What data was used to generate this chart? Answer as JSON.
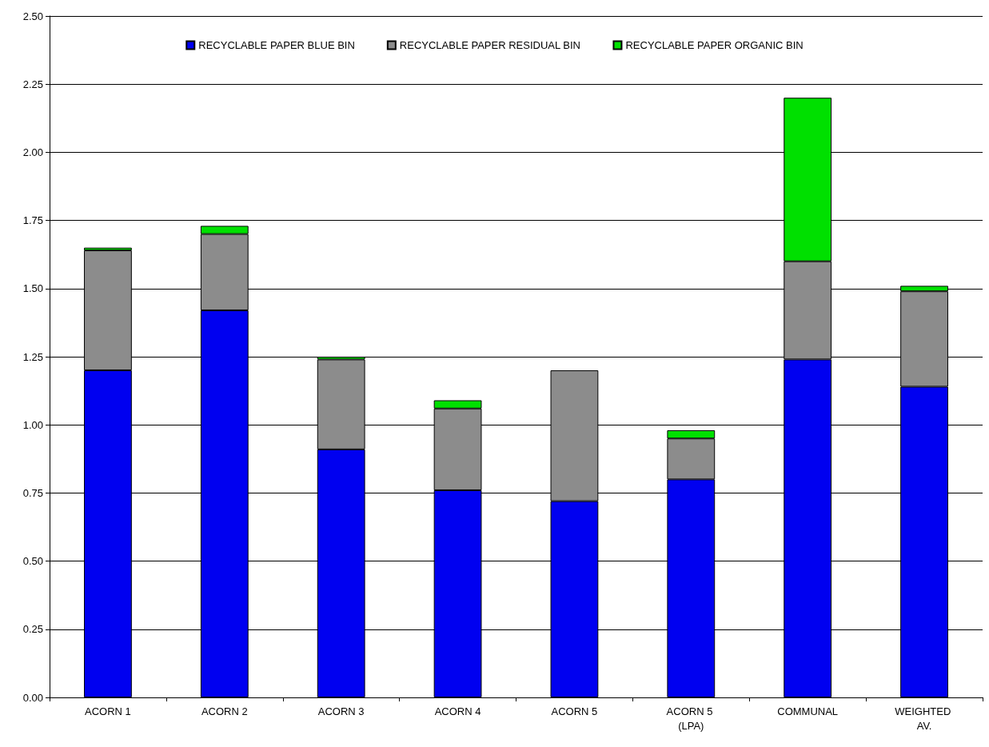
{
  "chart_data": {
    "type": "bar",
    "stacked": true,
    "categories": [
      "ACORN 1",
      "ACORN 2",
      "ACORN 3",
      "ACORN 4",
      "ACORN 5",
      "ACORN 5 (LPA)",
      "COMMUNAL",
      "WEIGHTED AV."
    ],
    "series": [
      {
        "name": "RECYCLABLE PAPER BLUE BIN",
        "color": "#0000f0",
        "values": [
          1.2,
          1.42,
          0.91,
          0.76,
          0.72,
          0.8,
          1.24,
          1.14
        ]
      },
      {
        "name": "RECYCLABLE PAPER RESIDUAL BIN",
        "color": "#8c8c8c",
        "values": [
          0.44,
          0.28,
          0.33,
          0.3,
          0.48,
          0.15,
          0.36,
          0.35
        ]
      },
      {
        "name": "RECYCLABLE PAPER ORGANIC BIN",
        "color": "#00e000",
        "values": [
          0.01,
          0.03,
          0.01,
          0.03,
          null,
          0.03,
          0.6,
          0.02
        ]
      }
    ],
    "ylim": [
      0,
      2.5
    ],
    "yticks": [
      {
        "value": 0,
        "label": "0.00"
      },
      {
        "value": 0.25,
        "label": "0.25"
      },
      {
        "value": 0.5,
        "label": "0.50"
      },
      {
        "value": 0.75,
        "label": "0.75"
      },
      {
        "value": 1,
        "label": "1.00"
      },
      {
        "value": 1.25,
        "label": "1.25"
      },
      {
        "value": 1.5,
        "label": "1.50"
      },
      {
        "value": 1.75,
        "label": "1.75"
      },
      {
        "value": 2,
        "label": "2.00"
      },
      {
        "value": 2.25,
        "label": "2.25"
      },
      {
        "value": 2.5,
        "label": "2.50"
      }
    ],
    "grid": "y",
    "legend": "top"
  }
}
